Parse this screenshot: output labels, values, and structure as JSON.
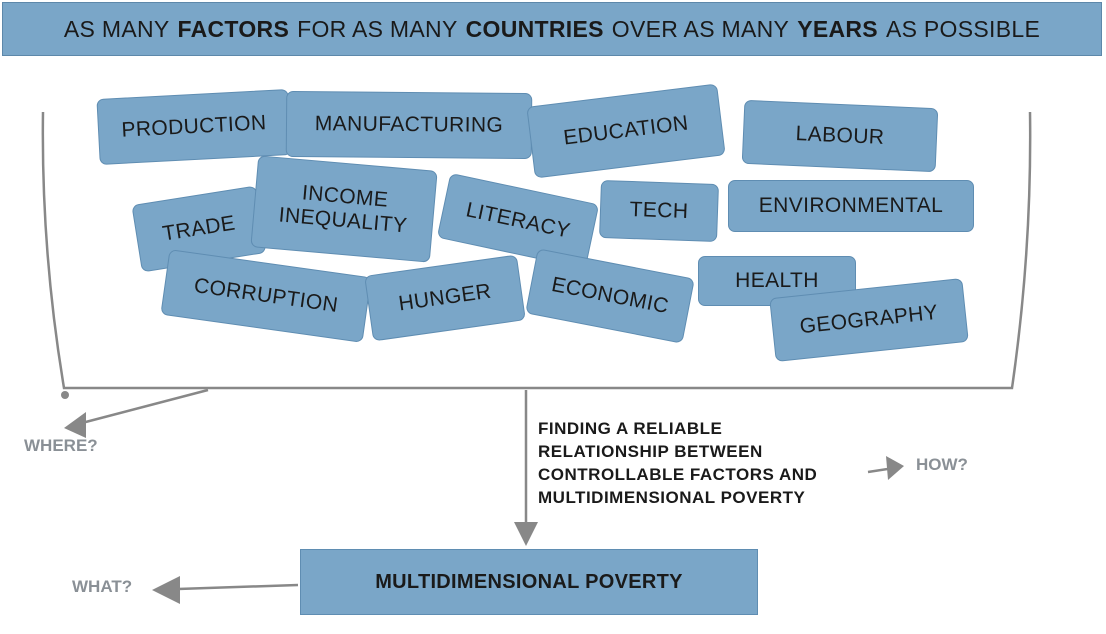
{
  "header": {
    "segments": [
      {
        "text": "AS MANY",
        "bold": false
      },
      {
        "text": "FACTORS",
        "bold": true
      },
      {
        "text": "FOR AS MANY",
        "bold": false
      },
      {
        "text": "COUNTRIES",
        "bold": true
      },
      {
        "text": "OVER AS MANY",
        "bold": false
      },
      {
        "text": "YEARS",
        "bold": true
      },
      {
        "text": "AS POSSIBLE",
        "bold": false
      }
    ]
  },
  "factors": [
    "PRODUCTION",
    "MANUFACTURING",
    "EDUCATION",
    "LABOUR",
    "INCOME INEQUALITY",
    "TRADE",
    "LITERACY",
    "TECH",
    "ENVIRONMENTAL",
    "CORRUPTION",
    "HUNGER",
    "ECONOMIC",
    "HEALTH",
    "GEOGRAPHY"
  ],
  "questions": {
    "where": "WHERE?",
    "how": "HOW?",
    "what": "WHAT?"
  },
  "finding": {
    "lines": [
      "FINDING A RELIABLE",
      "RELATIONSHIP BETWEEN",
      "CONTROLLABLE FACTORS AND",
      "MULTIDIMENSIONAL POVERTY"
    ]
  },
  "result": {
    "label": "MULTIDIMENSIONAL POVERTY"
  },
  "colors": {
    "box_fill": "#7aa6c8",
    "line": "#888888",
    "question_text": "#8a9096"
  }
}
